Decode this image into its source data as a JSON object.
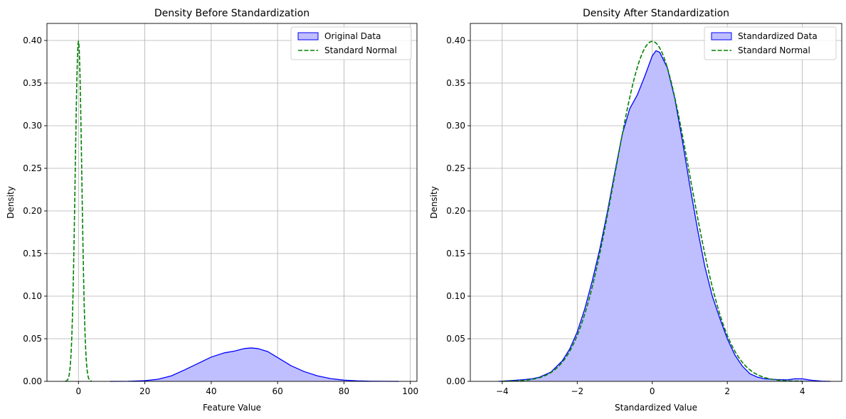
{
  "chart_data": [
    {
      "type": "area",
      "title": "Density Before Standardization",
      "xlabel": "Feature Value",
      "ylabel": "Density",
      "xlim": [
        -9.5,
        102
      ],
      "ylim": [
        0,
        0.42
      ],
      "xticks": [
        0,
        20,
        40,
        60,
        80,
        100
      ],
      "yticks": [
        0.0,
        0.05,
        0.1,
        0.15,
        0.2,
        0.25,
        0.3,
        0.35,
        0.4
      ],
      "xtick_labels": [
        "0",
        "20",
        "40",
        "60",
        "80",
        "100"
      ],
      "ytick_labels": [
        "0.00",
        "0.05",
        "0.10",
        "0.15",
        "0.20",
        "0.25",
        "0.30",
        "0.35",
        "0.40"
      ],
      "grid": true,
      "legend_position": "top-right",
      "series": [
        {
          "name": "Original Data",
          "style": "filled-kde",
          "color": "#0000ff",
          "fill": "#bfbfff",
          "x": [
            9.5,
            15,
            20,
            24,
            28,
            32,
            36,
            40,
            44,
            47,
            50,
            52,
            54,
            57,
            60,
            64,
            68,
            72,
            76,
            80,
            84,
            88,
            92,
            96.5
          ],
          "y": [
            0.0,
            0.0001,
            0.0008,
            0.0025,
            0.0065,
            0.0135,
            0.021,
            0.0285,
            0.0335,
            0.0355,
            0.0385,
            0.0392,
            0.0385,
            0.035,
            0.028,
            0.0185,
            0.0115,
            0.0065,
            0.0032,
            0.0014,
            0.0006,
            0.0002,
            0.0001,
            0.0
          ]
        },
        {
          "name": "Standard Normal",
          "style": "dashed-line",
          "color": "#008000",
          "normal": {
            "mean": 0,
            "sd": 1,
            "xmin": -4,
            "xmax": 4
          }
        }
      ]
    },
    {
      "type": "area",
      "title": "Density After Standardization",
      "xlabel": "Standardized Value",
      "ylabel": "Density",
      "xlim": [
        -4.85,
        5.05
      ],
      "ylim": [
        0,
        0.42
      ],
      "xticks": [
        -4,
        -2,
        0,
        2,
        4
      ],
      "yticks": [
        0.0,
        0.05,
        0.1,
        0.15,
        0.2,
        0.25,
        0.3,
        0.35,
        0.4
      ],
      "xtick_labels": [
        "−4",
        "−2",
        "0",
        "2",
        "4"
      ],
      "ytick_labels": [
        "0.00",
        "0.05",
        "0.10",
        "0.15",
        "0.20",
        "0.25",
        "0.30",
        "0.35",
        "0.40"
      ],
      "grid": true,
      "legend_position": "top-right",
      "series": [
        {
          "name": "Standardized Data",
          "style": "filled-kde",
          "color": "#0000ff",
          "fill": "#bfbfff",
          "x": [
            -4.1,
            -3.8,
            -3.5,
            -3.2,
            -3.0,
            -2.7,
            -2.4,
            -2.2,
            -2.0,
            -1.8,
            -1.6,
            -1.4,
            -1.2,
            -1.0,
            -0.8,
            -0.6,
            -0.4,
            -0.2,
            0.0,
            0.1,
            0.2,
            0.4,
            0.6,
            0.8,
            1.0,
            1.2,
            1.4,
            1.6,
            1.8,
            2.0,
            2.2,
            2.4,
            2.6,
            2.8,
            3.0,
            3.3,
            3.6,
            3.8,
            4.0,
            4.2,
            4.5,
            4.75
          ],
          "y": [
            0.0,
            0.0008,
            0.0018,
            0.003,
            0.005,
            0.011,
            0.024,
            0.038,
            0.058,
            0.085,
            0.118,
            0.155,
            0.198,
            0.245,
            0.29,
            0.32,
            0.336,
            0.358,
            0.382,
            0.388,
            0.386,
            0.368,
            0.332,
            0.283,
            0.23,
            0.18,
            0.135,
            0.1,
            0.074,
            0.05,
            0.031,
            0.018,
            0.009,
            0.005,
            0.003,
            0.0022,
            0.0018,
            0.003,
            0.003,
            0.0015,
            0.0003,
            0.0
          ]
        },
        {
          "name": "Standard Normal",
          "style": "dashed-line",
          "color": "#008000",
          "normal": {
            "mean": 0,
            "sd": 1,
            "xmin": -4,
            "xmax": 4
          }
        }
      ]
    }
  ]
}
